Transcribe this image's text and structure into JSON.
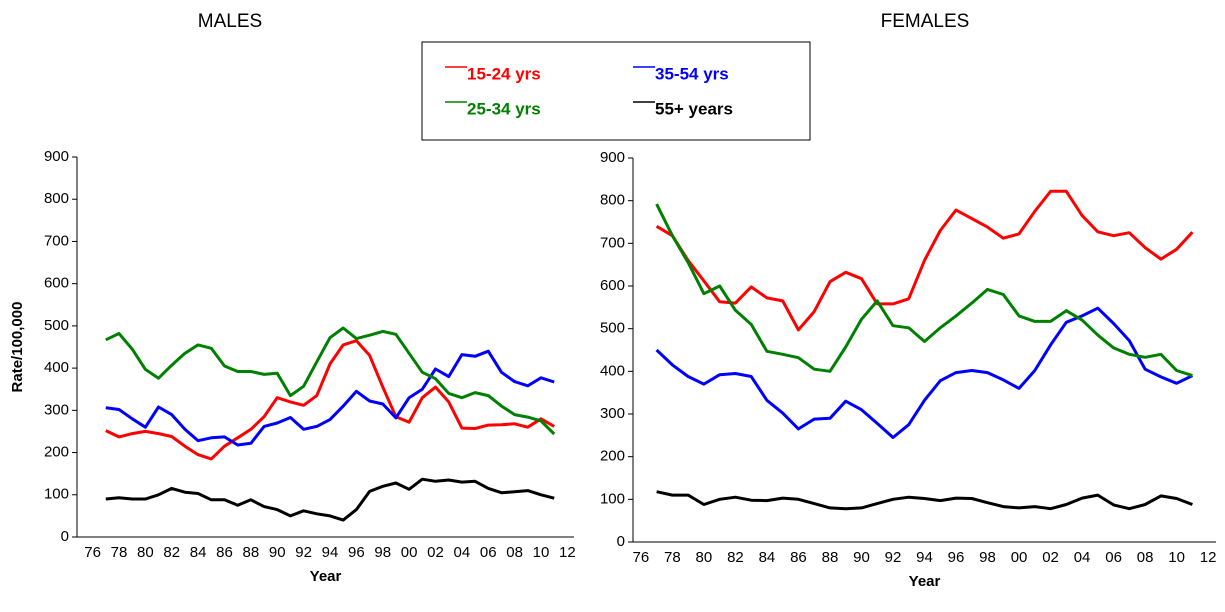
{
  "chart_data": [
    {
      "type": "line",
      "title": "MALES",
      "x_label": "Year",
      "y_label": "Rate/100,000",
      "categories": [
        "76",
        null,
        "78",
        null,
        "80",
        null,
        "82",
        null,
        "84",
        null,
        "86",
        null,
        "88",
        null,
        "90",
        null,
        "92",
        null,
        "94",
        null,
        "96",
        null,
        "98",
        null,
        "00",
        null,
        "02",
        null,
        "04",
        null,
        "06",
        null,
        "08",
        null,
        "10",
        null,
        "12"
      ],
      "ylim": [
        0,
        900
      ],
      "yticks": [
        0,
        100,
        200,
        300,
        400,
        500,
        600,
        700,
        800,
        900
      ],
      "series": [
        {
          "name": "15-24 yrs",
          "color": "#ff0000",
          "values": [
            null,
            252,
            237,
            245,
            250,
            245,
            238,
            215,
            195,
            185,
            215,
            235,
            255,
            285,
            330,
            320,
            312,
            335,
            410,
            455,
            465,
            430,
            355,
            285,
            272,
            330,
            355,
            320,
            258,
            257,
            265,
            266,
            268,
            260,
            280,
            262,
            null
          ]
        },
        {
          "name": "35-54 yrs",
          "color": "#0000ff",
          "values": [
            null,
            306,
            302,
            280,
            260,
            308,
            290,
            255,
            228,
            235,
            237,
            218,
            222,
            262,
            270,
            283,
            255,
            262,
            278,
            310,
            345,
            322,
            315,
            282,
            330,
            350,
            398,
            380,
            432,
            428,
            440,
            390,
            368,
            358,
            377,
            367,
            null
          ]
        },
        {
          "name": "25-34 yrs",
          "color": "#008000",
          "values": [
            null,
            467,
            482,
            445,
            397,
            376,
            407,
            435,
            455,
            447,
            405,
            392,
            392,
            385,
            388,
            335,
            357,
            415,
            472,
            495,
            470,
            478,
            487,
            480,
            435,
            390,
            375,
            340,
            330,
            342,
            335,
            310,
            290,
            284,
            275,
            244,
            null
          ]
        },
        {
          "name": "55+ years",
          "color": "#000000",
          "values": [
            null,
            90,
            93,
            90,
            90,
            100,
            115,
            106,
            103,
            88,
            88,
            75,
            88,
            72,
            65,
            50,
            62,
            55,
            50,
            40,
            65,
            108,
            120,
            128,
            113,
            137,
            132,
            135,
            130,
            132,
            115,
            105,
            107,
            110,
            100,
            92,
            null
          ]
        }
      ]
    },
    {
      "type": "line",
      "title": "FEMALES",
      "x_label": "Year",
      "categories": [
        "76",
        null,
        "78",
        null,
        "80",
        null,
        "82",
        null,
        "84",
        null,
        "86",
        null,
        "88",
        null,
        "90",
        null,
        "92",
        null,
        "94",
        null,
        "96",
        null,
        "98",
        null,
        "00",
        null,
        "02",
        null,
        "04",
        null,
        "06",
        null,
        "08",
        null,
        "10",
        null,
        "12"
      ],
      "ylim": [
        0,
        900
      ],
      "yticks": [
        0,
        100,
        200,
        300,
        400,
        500,
        600,
        700,
        800,
        900
      ],
      "series": [
        {
          "color": "#ff0000",
          "values": [
            null,
            740,
            718,
            660,
            612,
            563,
            560,
            598,
            572,
            565,
            497,
            540,
            610,
            632,
            617,
            558,
            558,
            570,
            660,
            730,
            778,
            758,
            738,
            712,
            722,
            775,
            822,
            822,
            765,
            727,
            718,
            725,
            690,
            663,
            686,
            726,
            null
          ]
        },
        {
          "color": "#0000ff",
          "values": [
            null,
            450,
            415,
            388,
            370,
            392,
            395,
            388,
            332,
            302,
            265,
            288,
            290,
            330,
            310,
            278,
            245,
            275,
            332,
            378,
            397,
            402,
            397,
            380,
            360,
            402,
            462,
            515,
            530,
            548,
            512,
            472,
            405,
            387,
            372,
            390,
            null
          ]
        },
        {
          "color": "#008000",
          "values": [
            null,
            792,
            718,
            655,
            582,
            600,
            543,
            510,
            447,
            440,
            432,
            405,
            400,
            457,
            522,
            565,
            507,
            502,
            470,
            502,
            530,
            560,
            592,
            580,
            530,
            517,
            517,
            542,
            520,
            485,
            455,
            440,
            433,
            440,
            402,
            390,
            null
          ]
        },
        {
          "color": "#000000",
          "values": [
            null,
            118,
            110,
            110,
            88,
            100,
            105,
            98,
            97,
            103,
            100,
            90,
            80,
            78,
            80,
            90,
            100,
            105,
            102,
            97,
            103,
            102,
            92,
            83,
            80,
            83,
            78,
            88,
            103,
            110,
            87,
            78,
            88,
            108,
            102,
            88,
            null
          ]
        }
      ]
    }
  ]
}
